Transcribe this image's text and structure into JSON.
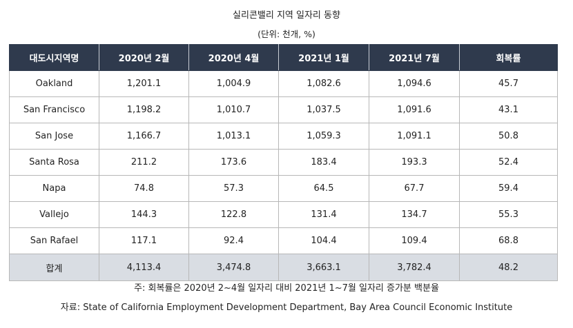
{
  "title": "실리콘밸리 지역 일자리 동향",
  "subtitle": "(단위: 천개, %)",
  "table": {
    "headers": [
      "대도시지역명",
      "2020년 2월",
      "2020년 4월",
      "2021년 1월",
      "2021년 7월",
      "회복률"
    ],
    "rows": [
      [
        "Oakland",
        "1,201.1",
        "1,004.9",
        "1,082.6",
        "1,094.6",
        "45.7"
      ],
      [
        "San Francisco",
        "1,198.2",
        "1,010.7",
        "1,037.5",
        "1,091.6",
        "43.1"
      ],
      [
        "San Jose",
        "1,166.7",
        "1,013.1",
        "1,059.3",
        "1,091.1",
        "50.8"
      ],
      [
        "Santa Rosa",
        "211.2",
        "173.6",
        "183.4",
        "193.3",
        "52.4"
      ],
      [
        "Napa",
        "74.8",
        "57.3",
        "64.5",
        "67.7",
        "59.4"
      ],
      [
        "Vallejo",
        "144.3",
        "122.8",
        "131.4",
        "134.7",
        "55.3"
      ],
      [
        "San Rafael",
        "117.1",
        "92.4",
        "104.4",
        "109.4",
        "68.8"
      ]
    ],
    "total": [
      "합계",
      "4,113.4",
      "3,474.8",
      "3,663.1",
      "3,782.4",
      "48.2"
    ]
  },
  "note": "주: 회복률은 2020년 2~4월 일자리 대비 2021년 1~7월 일자리 증가분 백분율",
  "source": "자료: State of California Employment Development Department, Bay Area Council Economic Institute",
  "colors": {
    "header_bg": "#2f3a4d",
    "header_text": "#ffffff",
    "total_bg": "#d9dde3",
    "border": "#b7b7b7"
  }
}
